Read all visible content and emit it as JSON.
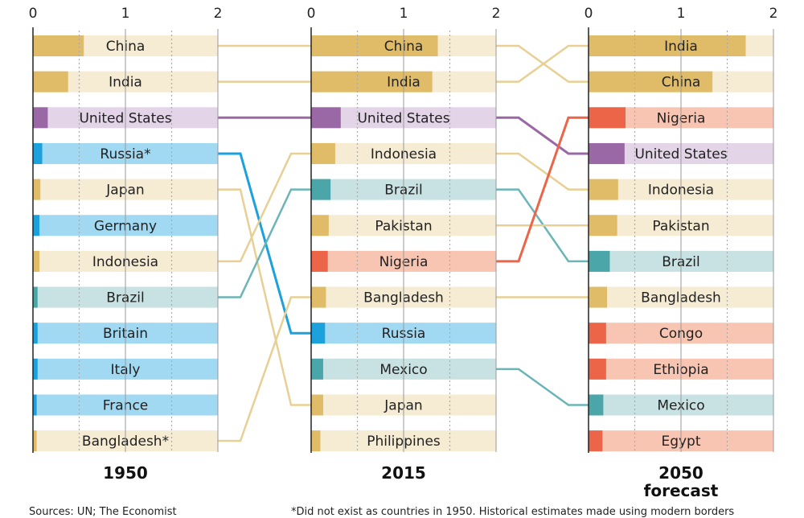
{
  "chart_data": {
    "type": "bar",
    "axis_ticks": [
      "0",
      "1",
      "2"
    ],
    "xlim": [
      0,
      2
    ],
    "grid": true,
    "colors": {
      "asia": {
        "bar": "#e0bc68",
        "bg": "#f6ebd3"
      },
      "us": {
        "bar": "#9b68a6",
        "bg": "#e3d4e8"
      },
      "europe": {
        "bar": "#1ba1dc",
        "bg": "#a1d9f3"
      },
      "latam": {
        "bar": "#4aa6a8",
        "bg": "#c8e2e3"
      },
      "africa": {
        "bar": "#ec6548",
        "bg": "#f9c5b3"
      }
    },
    "panels": [
      {
        "year": "1950",
        "subtitle": "",
        "rows": [
          {
            "name": "China",
            "value": 0.55,
            "group": "asia"
          },
          {
            "name": "India",
            "value": 0.38,
            "group": "asia"
          },
          {
            "name": "United States",
            "value": 0.16,
            "group": "us"
          },
          {
            "name": "Russia*",
            "value": 0.1,
            "group": "europe"
          },
          {
            "name": "Japan",
            "value": 0.08,
            "group": "asia"
          },
          {
            "name": "Germany",
            "value": 0.07,
            "group": "europe"
          },
          {
            "name": "Indonesia",
            "value": 0.07,
            "group": "asia"
          },
          {
            "name": "Brazil",
            "value": 0.05,
            "group": "latam"
          },
          {
            "name": "Britain",
            "value": 0.05,
            "group": "europe"
          },
          {
            "name": "Italy",
            "value": 0.05,
            "group": "europe"
          },
          {
            "name": "France",
            "value": 0.04,
            "group": "europe"
          },
          {
            "name": "Bangladesh*",
            "value": 0.04,
            "group": "asia"
          }
        ]
      },
      {
        "year": "2015",
        "subtitle": "",
        "rows": [
          {
            "name": "China",
            "value": 1.37,
            "group": "asia"
          },
          {
            "name": "India",
            "value": 1.31,
            "group": "asia"
          },
          {
            "name": "United States",
            "value": 0.32,
            "group": "us"
          },
          {
            "name": "Indonesia",
            "value": 0.26,
            "group": "asia"
          },
          {
            "name": "Brazil",
            "value": 0.21,
            "group": "latam"
          },
          {
            "name": "Pakistan",
            "value": 0.19,
            "group": "asia"
          },
          {
            "name": "Nigeria",
            "value": 0.18,
            "group": "africa"
          },
          {
            "name": "Bangladesh",
            "value": 0.16,
            "group": "asia"
          },
          {
            "name": "Russia",
            "value": 0.15,
            "group": "europe"
          },
          {
            "name": "Mexico",
            "value": 0.13,
            "group": "latam"
          },
          {
            "name": "Japan",
            "value": 0.13,
            "group": "asia"
          },
          {
            "name": "Philippines",
            "value": 0.1,
            "group": "asia"
          }
        ]
      },
      {
        "year": "2050",
        "subtitle": "forecast",
        "rows": [
          {
            "name": "India",
            "value": 1.7,
            "group": "asia"
          },
          {
            "name": "China",
            "value": 1.34,
            "group": "asia"
          },
          {
            "name": "Nigeria",
            "value": 0.4,
            "group": "africa"
          },
          {
            "name": "United States",
            "value": 0.39,
            "group": "us"
          },
          {
            "name": "Indonesia",
            "value": 0.32,
            "group": "asia"
          },
          {
            "name": "Pakistan",
            "value": 0.31,
            "group": "asia"
          },
          {
            "name": "Brazil",
            "value": 0.23,
            "group": "latam"
          },
          {
            "name": "Bangladesh",
            "value": 0.2,
            "group": "asia"
          },
          {
            "name": "Congo",
            "value": 0.19,
            "group": "africa"
          },
          {
            "name": "Ethiopia",
            "value": 0.19,
            "group": "africa"
          },
          {
            "name": "Mexico",
            "value": 0.16,
            "group": "latam"
          },
          {
            "name": "Egypt",
            "value": 0.15,
            "group": "africa"
          }
        ]
      }
    ],
    "links": [
      [
        [
          1,
          1
        ],
        [
          2,
          2
        ],
        [
          3,
          3
        ],
        [
          4,
          9
        ],
        [
          5,
          11
        ],
        [
          7,
          4
        ],
        [
          8,
          5
        ],
        [
          12,
          8
        ]
      ],
      [
        [
          1,
          2
        ],
        [
          2,
          1
        ],
        [
          3,
          4
        ],
        [
          4,
          5
        ],
        [
          5,
          7
        ],
        [
          6,
          6
        ],
        [
          7,
          3
        ],
        [
          8,
          8
        ],
        [
          10,
          11
        ]
      ]
    ]
  },
  "footer": {
    "source": "Sources: UN; The Economist",
    "note": "*Did not exist as countries in 1950. Historical estimates made using modern borders"
  }
}
